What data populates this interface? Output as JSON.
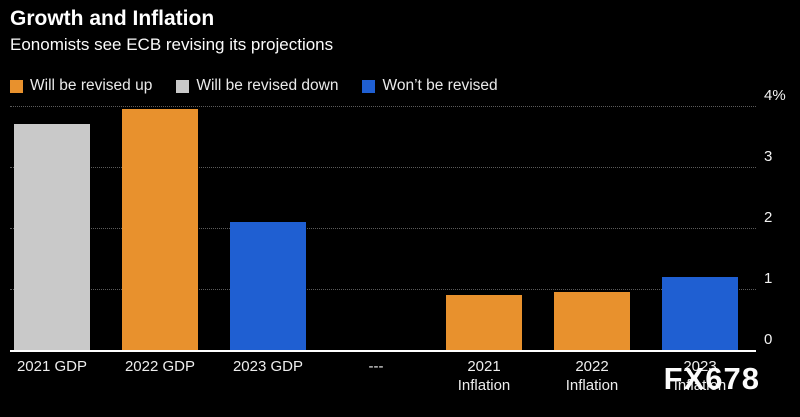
{
  "header": {
    "title": "Growth and Inflation",
    "subtitle": "Eonomists see ECB revising its projections"
  },
  "legend": [
    {
      "label": "Will be revised up",
      "color": "#E8912D"
    },
    {
      "label": "Will be revised down",
      "color": "#C9C9C9"
    },
    {
      "label": "Won’t be revised",
      "color": "#1F5FD2"
    }
  ],
  "watermark": "FX678",
  "colors": {
    "background": "#000000",
    "text": "#ffffff",
    "gridline": "#5b5b5b",
    "axis": "#ffffff",
    "orange": "#E8912D",
    "gray": "#C9C9C9",
    "blue": "#1F5FD2"
  },
  "chart_data": {
    "type": "bar",
    "title": "Growth and Inflation",
    "subtitle": "Eonomists see ECB revising its projections",
    "categories": [
      "2021 GDP",
      "2022 GDP",
      "2023 GDP",
      "---",
      "2021\nInflation",
      "2022\nInflation",
      "2023\nInflation"
    ],
    "values": [
      3.7,
      3.95,
      2.1,
      null,
      0.9,
      0.95,
      1.2
    ],
    "bar_colors": [
      "#C9C9C9",
      "#E8912D",
      "#1F5FD2",
      null,
      "#E8912D",
      "#E8912D",
      "#1F5FD2"
    ],
    "series_legend": [
      "Will be revised up",
      "Will be revised down",
      "Won’t be revised"
    ],
    "xlabel": "",
    "ylabel": "",
    "ylim": [
      0,
      4
    ],
    "yticks": [
      0,
      1,
      2,
      3,
      4
    ],
    "ytick_labels": [
      "0",
      "1",
      "2",
      "3",
      "4%"
    ],
    "grid": "horizontal-dotted",
    "legend_position": "top-left",
    "y_axis_side": "right"
  }
}
